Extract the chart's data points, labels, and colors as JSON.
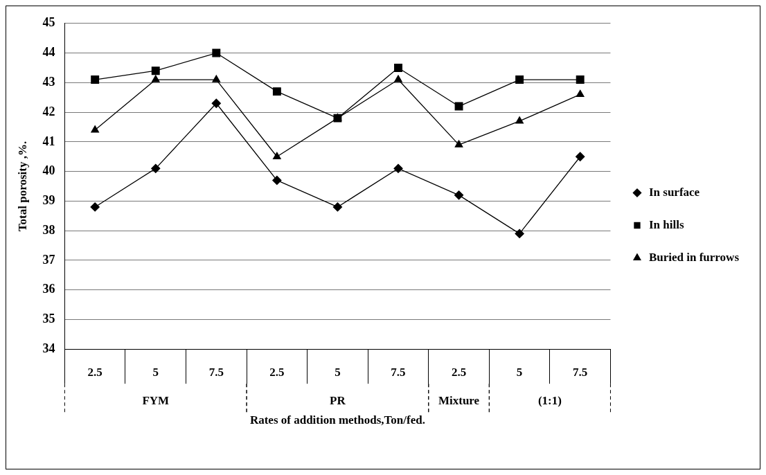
{
  "chart_data": {
    "type": "line",
    "xlabel": "Rates of addition methods,Ton/fed.",
    "ylabel": "Total porosity ,%.",
    "categories": [
      "2.5",
      "5",
      "7.5",
      "2.5",
      "5",
      "7.5",
      "2.5",
      "5",
      "7.5"
    ],
    "series": [
      {
        "name": "In surface",
        "color": "#000000",
        "marker": "diamond",
        "values": [
          38.8,
          40.1,
          42.3,
          39.7,
          38.8,
          40.1,
          39.2,
          37.9,
          40.5
        ]
      },
      {
        "name": "In hills",
        "color": "#000000",
        "marker": "square",
        "values": [
          43.1,
          43.4,
          44.0,
          42.7,
          41.8,
          43.5,
          42.2,
          43.1,
          43.1
        ]
      },
      {
        "name": "Buried in furrows",
        "color": "#000000",
        "marker": "triangle",
        "values": [
          41.4,
          43.1,
          43.1,
          40.5,
          41.8,
          43.1,
          40.9,
          41.7,
          42.6
        ]
      }
    ],
    "ylim": [
      34,
      45
    ],
    "yticks": [
      34,
      35,
      36,
      37,
      38,
      39,
      40,
      41,
      42,
      43,
      44,
      45
    ],
    "grid": "y",
    "legend": "right",
    "line_style": "solid",
    "annotations": [
      "FYM",
      "PR",
      "Mixture",
      "(1:1)"
    ]
  }
}
